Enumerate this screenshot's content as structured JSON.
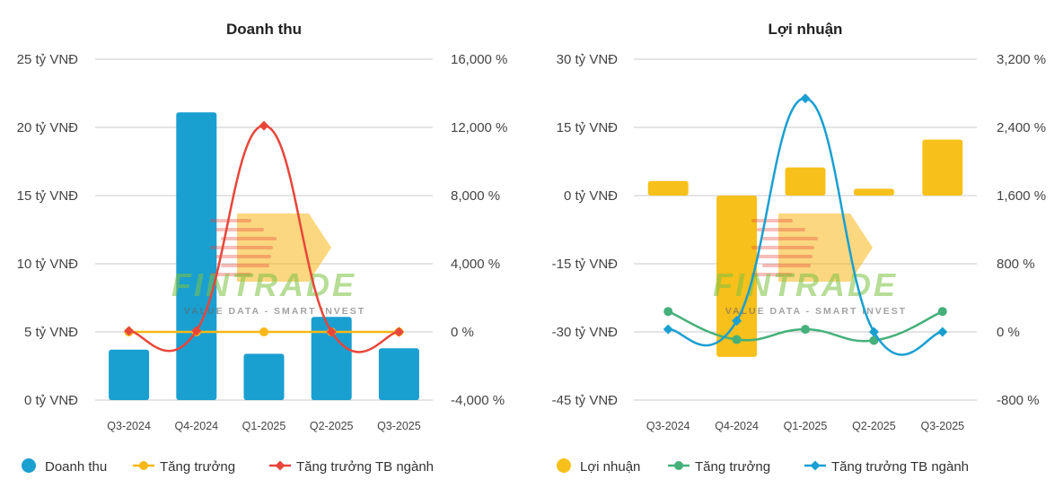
{
  "watermark": {
    "brand": "FINTRADE",
    "tagline": "VALUE DATA - SMART INVEST"
  },
  "chart_data": [
    {
      "type": "bar+line",
      "title": "Doanh thu",
      "categories": [
        "Q3-2024",
        "Q4-2024",
        "Q1-2025",
        "Q2-2025",
        "Q3-2025"
      ],
      "bar_series": {
        "name": "Doanh thu",
        "values": [
          3.7,
          21.1,
          3.4,
          6.1,
          3.8
        ],
        "color": "#1a9fd1"
      },
      "line_series": [
        {
          "name": "Tăng trưởng",
          "values": [
            0,
            0,
            0,
            0,
            0
          ],
          "color": "#f7b718",
          "marker": "circle"
        },
        {
          "name": "Tăng trưởng TB ngành",
          "values": [
            60,
            60,
            12100,
            0,
            0
          ],
          "color": "#e8463a",
          "marker": "diamond"
        }
      ],
      "y_left": {
        "min": 0,
        "max": 25,
        "ticks": [
          0,
          5,
          10,
          15,
          20,
          25
        ],
        "tick_labels": [
          "0 tỷ VNĐ",
          "5 tỷ VNĐ",
          "10 tỷ VNĐ",
          "15 tỷ VNĐ",
          "20 tỷ VNĐ",
          "25 tỷ VNĐ"
        ]
      },
      "y_right": {
        "min": -4000,
        "max": 16000,
        "ticks": [
          -4000,
          0,
          4000,
          8000,
          12000,
          16000
        ],
        "tick_labels": [
          "-4,000 %",
          "0 %",
          "4,000 %",
          "8,000 %",
          "12,000 %",
          "16,000 %"
        ]
      },
      "legend": [
        {
          "label": "Doanh thu",
          "kind": "bar",
          "color": "#1a9fd1"
        },
        {
          "label": "Tăng trưởng",
          "kind": "circle",
          "color": "#f7b718"
        },
        {
          "label": "Tăng trưởng TB ngành",
          "kind": "diamond",
          "color": "#e8463a"
        }
      ]
    },
    {
      "type": "bar+line",
      "title": "Lợi nhuận",
      "categories": [
        "Q3-2024",
        "Q4-2024",
        "Q1-2025",
        "Q2-2025",
        "Q3-2025"
      ],
      "bar_series": {
        "name": "Lợi nhuận",
        "values": [
          3.2,
          -35.5,
          6.2,
          1.5,
          12.3
        ],
        "color": "#f7c01a"
      },
      "line_series": [
        {
          "name": "Tăng trưởng",
          "values": [
            240,
            -90,
            30,
            -100,
            240
          ],
          "color": "#45b07a",
          "marker": "circle"
        },
        {
          "name": "Tăng trưởng TB ngành",
          "values": [
            30,
            130,
            2740,
            0,
            0
          ],
          "color": "#1a9fd1",
          "marker": "diamond"
        }
      ],
      "y_left": {
        "min": -45,
        "max": 30,
        "ticks": [
          -45,
          -30,
          -15,
          0,
          15,
          30
        ],
        "tick_labels": [
          "-45 tỷ VNĐ",
          "-30 tỷ VNĐ",
          "-15 tỷ VNĐ",
          "0 tỷ VNĐ",
          "15 tỷ VNĐ",
          "30 tỷ VNĐ"
        ]
      },
      "y_right": {
        "min": -800,
        "max": 3200,
        "ticks": [
          -800,
          0,
          800,
          1600,
          2400,
          3200
        ],
        "tick_labels": [
          "-800 %",
          "0 %",
          "800 %",
          "1,600 %",
          "2,400 %",
          "3,200 %"
        ]
      },
      "legend": [
        {
          "label": "Lợi nhuận",
          "kind": "bar",
          "color": "#f7c01a"
        },
        {
          "label": "Tăng trưởng",
          "kind": "circle",
          "color": "#45b07a"
        },
        {
          "label": "Tăng trưởng TB ngành",
          "kind": "diamond",
          "color": "#1a9fd1"
        }
      ]
    }
  ]
}
